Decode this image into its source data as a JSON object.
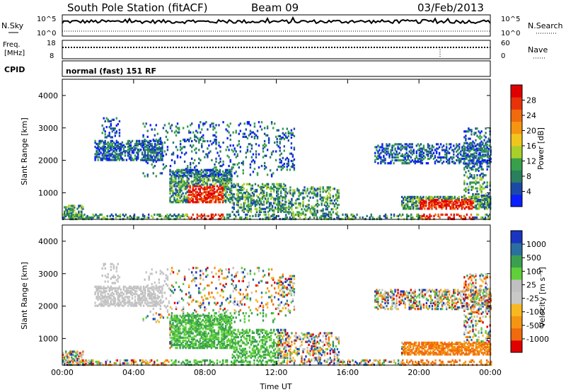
{
  "header": {
    "station": "South Pole Station (fitACF)",
    "beam": "Beam 09",
    "date": "03/Feb/2013"
  },
  "strip_labels": {
    "nsky": "N.Sky",
    "nsky_ticks": [
      "10^5",
      "10^0"
    ],
    "nsearch": "N.Search",
    "nsearch_ticks": [
      "10^5",
      "10^0"
    ],
    "freq_top": "Freq.",
    "freq_unit": "[MHz]",
    "freq_ticks": [
      "18",
      "8"
    ],
    "nave": "Nave",
    "nave_ticks": [
      "60",
      "0"
    ],
    "cpid": "CPID",
    "cpid_value": "normal (fast) 151 RF"
  },
  "colors": {
    "power_scale": [
      "#0a1eff",
      "#1c49a8",
      "#2a7f5f",
      "#38a04a",
      "#a9cf2b",
      "#f0c61e",
      "#f59512",
      "#f06a0e",
      "#e8320a",
      "#e00000"
    ],
    "velocity_scale": [
      "#e00000",
      "#f06a0e",
      "#f59512",
      "#f8b820",
      "#c8c8c8",
      "#c0c0c0",
      "#5fcf3a",
      "#3aa050",
      "#2a6fa0",
      "#1a35c0"
    ]
  },
  "chart_data": [
    {
      "type": "heatmap",
      "name": "power-panel",
      "xlabel": "",
      "ylabel": "Slant Range [km]",
      "xlim": [
        0,
        24
      ],
      "ylim": [
        180,
        4500
      ],
      "yticks": [
        "1000",
        "2000",
        "3000",
        "4000"
      ],
      "xtick_labels": [
        "00:00",
        "04:00",
        "08:00",
        "12:00",
        "16:00",
        "20:00",
        "00:00"
      ],
      "colorbar": {
        "label": "Power [dB]",
        "tick_labels": [
          "4",
          "8",
          "12",
          "16",
          "20",
          "24",
          "28"
        ]
      }
    },
    {
      "type": "heatmap",
      "name": "velocity-panel",
      "xlabel": "Time UT",
      "ylabel": "Slant Range [km]",
      "xlim": [
        0,
        24
      ],
      "ylim": [
        180,
        4500
      ],
      "yticks": [
        "1000",
        "2000",
        "3000",
        "4000"
      ],
      "xtick_labels": [
        "00:00",
        "04:00",
        "08:00",
        "12:00",
        "16:00",
        "20:00",
        "00:00"
      ],
      "colorbar": {
        "label": "Velocity [m s⁻¹]",
        "tick_labels": [
          "-1000",
          "-500",
          "-100",
          "-25",
          "25",
          "100",
          "500",
          "1000"
        ]
      }
    }
  ]
}
